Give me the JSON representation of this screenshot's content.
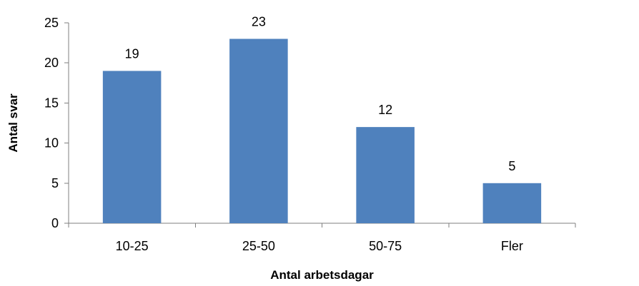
{
  "chart_data": {
    "type": "bar",
    "categories": [
      "10-25",
      "25-50",
      "50-75",
      "Fler"
    ],
    "values": [
      19,
      23,
      12,
      5
    ],
    "title": "",
    "xlabel": "Antal arbetsdagar",
    "ylabel": "Antal svar",
    "ylim": [
      0,
      25
    ],
    "yticks": [
      0,
      5,
      10,
      15,
      20,
      25
    ],
    "data_labels": true,
    "grid": false,
    "legend": "none",
    "bar_color": "#4F81BD"
  }
}
